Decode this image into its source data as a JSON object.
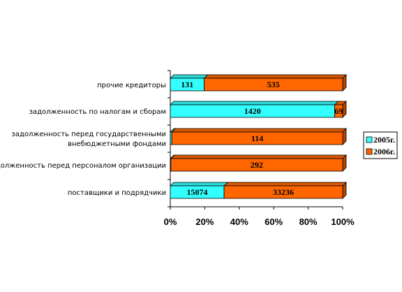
{
  "chart_data": {
    "type": "bar",
    "orientation": "horizontal",
    "stacked": "percent",
    "three_d": true,
    "categories": [
      [
        "прочие кредиторы"
      ],
      [
        "задолженность по налогам и сборам"
      ],
      [
        "задолженность перед государственными",
        "внебюджетными фондами"
      ],
      [
        "задолженность перед персоналом организации"
      ],
      [
        "поставщики и подрядчики"
      ]
    ],
    "series": [
      {
        "name": "2005г.",
        "color": "#33FFFF",
        "values": [
          131,
          1420,
          1,
          1,
          15074
        ]
      },
      {
        "name": "2006г.",
        "color": "#FF6600",
        "values": [
          535,
          69,
          114,
          292,
          33236
        ]
      }
    ],
    "data_labels": [
      [
        "131",
        "535"
      ],
      [
        "1420",
        "69"
      ],
      [
        "",
        "114"
      ],
      [
        "",
        "292"
      ],
      [
        "15074",
        "33236"
      ]
    ],
    "xticks": [
      "0%",
      "20%",
      "40%",
      "60%",
      "80%",
      "100%"
    ],
    "xlim": [
      0,
      100
    ],
    "grid": false,
    "legend_position": "right"
  }
}
